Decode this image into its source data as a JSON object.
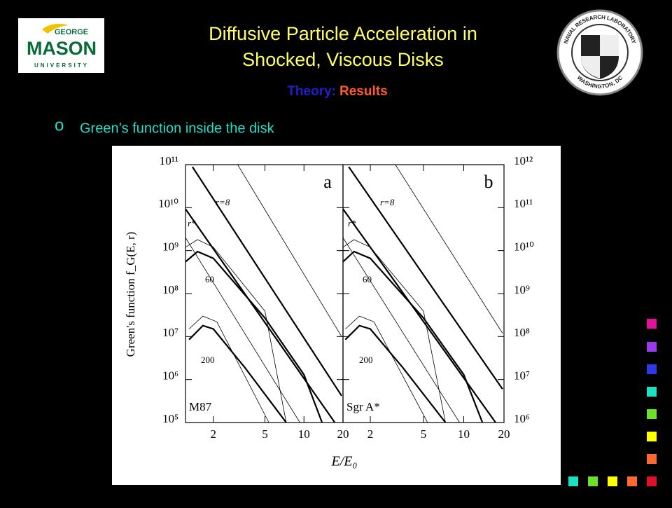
{
  "header": {
    "title_lines": [
      "Diffusive Particle Acceleration in",
      "Shocked, Viscous Disks"
    ],
    "subtitle": {
      "prefix": "Theory:",
      "emphasis": "Results"
    }
  },
  "logos": {
    "left": [
      "GEORGE",
      "MASON",
      "UNIVERSITY"
    ],
    "right": [
      "NAVAL RESEARCH LABORATORY",
      "WASHINGTON, DC"
    ]
  },
  "bullet": {
    "marker": "o",
    "text": "Green’s function inside the disk"
  },
  "chart_data": [
    {
      "type": "line",
      "panel_label": "a",
      "xlabel": "E/E₀",
      "ylabel": "Green's function f_G(E, r)",
      "log_x": true,
      "log_y": true,
      "ytick_side": "left",
      "xlim": [
        1.22,
        20
      ],
      "xticks": [
        2,
        5,
        10,
        20
      ],
      "ylim": [
        100000,
        100000000000
      ],
      "yticks": [
        {
          "value": 100000,
          "label": "10⁵"
        },
        {
          "value": 1000000,
          "label": "10⁶"
        },
        {
          "value": 10000000,
          "label": "10⁷"
        },
        {
          "value": 100000000,
          "label": "10⁸"
        },
        {
          "value": 1000000000,
          "label": "10⁹"
        },
        {
          "value": 10000000000,
          "label": "10¹⁰"
        },
        {
          "value": 100000000000,
          "label": "10¹¹"
        }
      ],
      "annotations": [
        "r=8",
        "r*",
        "60",
        "200",
        "M87"
      ],
      "series": [
        {
          "color": "#000",
          "line_width": 2.2,
          "x": [
            1.38,
            19.5
          ],
          "values": [
            89000000000,
            420000
          ]
        },
        {
          "color": "#000",
          "line_width": 0.8,
          "x": [
            3.08,
            19.5
          ],
          "values": [
            100000000000,
            10000000
          ]
        },
        {
          "color": "#000",
          "line_width": 2.2,
          "x": [
            1.22,
            17.3
          ],
          "values": [
            9300000000,
            100000
          ]
        },
        {
          "color": "#000",
          "line_width": 0.8,
          "x": [
            1.22,
            9.3
          ],
          "values": [
            2000000000,
            100000
          ]
        },
        {
          "color": "#000",
          "line_width": 2.2,
          "x": [
            1.22,
            1.51,
            2,
            5,
            10,
            13.8
          ],
          "values": [
            550000000,
            950000000,
            660000000,
            27000000,
            1300000,
            100000
          ]
        },
        {
          "color": "#000",
          "line_width": 0.8,
          "x": [
            1.22,
            1.51,
            2,
            5,
            7.3
          ],
          "values": [
            1200000000,
            1800000000,
            1200000000,
            39000000,
            100000
          ]
        },
        {
          "color": "#000",
          "line_width": 2.2,
          "x": [
            1.3,
            1.66,
            2,
            3.5,
            7.3
          ],
          "values": [
            8500000,
            18000000,
            15000000,
            1900000,
            100000
          ]
        },
        {
          "color": "#000",
          "line_width": 0.8,
          "x": [
            1.3,
            1.66,
            2.13,
            5.36
          ],
          "values": [
            15000000,
            30000000,
            22000000,
            100000
          ]
        }
      ]
    },
    {
      "type": "line",
      "panel_label": "b",
      "log_x": true,
      "log_y": true,
      "ytick_side": "right",
      "xlim": [
        1.25,
        20
      ],
      "xticks": [
        2,
        5,
        10,
        20
      ],
      "ylim": [
        1000000,
        1000000000000
      ],
      "yticks": [
        {
          "value": 1000000,
          "label": "10⁶"
        },
        {
          "value": 10000000,
          "label": "10⁷"
        },
        {
          "value": 100000000,
          "label": "10⁸"
        },
        {
          "value": 1000000000,
          "label": "10⁹"
        },
        {
          "value": 10000000000,
          "label": "10¹⁰"
        },
        {
          "value": 100000000000,
          "label": "10¹¹"
        },
        {
          "value": 1000000000000,
          "label": "10¹²"
        }
      ],
      "annotations": [
        "r=8",
        "r*",
        "60",
        "200",
        "Sgr A*"
      ],
      "series": [
        {
          "color": "#000",
          "line_width": 2.2,
          "x": [
            1.38,
            19.5
          ],
          "values": [
            890000000000,
            6000000
          ]
        },
        {
          "color": "#000",
          "line_width": 0.8,
          "x": [
            3.08,
            19.5
          ],
          "values": [
            1000000000000,
            120000000
          ]
        },
        {
          "color": "#000",
          "line_width": 2.2,
          "x": [
            1.25,
            17.3
          ],
          "values": [
            93000000000,
            1000000
          ]
        },
        {
          "color": "#000",
          "line_width": 0.8,
          "x": [
            1.25,
            9.3
          ],
          "values": [
            20000000000,
            1000000
          ]
        },
        {
          "color": "#000",
          "line_width": 2.2,
          "x": [
            1.25,
            1.51,
            2,
            5,
            10,
            13.8
          ],
          "values": [
            5500000000,
            9500000000,
            6600000000,
            270000000,
            13000000,
            1000000
          ]
        },
        {
          "color": "#000",
          "line_width": 0.8,
          "x": [
            1.25,
            1.51,
            2,
            5,
            7.3
          ],
          "values": [
            12000000000,
            18000000000,
            12000000000,
            390000000,
            1000000
          ]
        },
        {
          "color": "#000",
          "line_width": 2.2,
          "x": [
            1.3,
            1.66,
            2,
            3.5,
            7.3
          ],
          "values": [
            85000000,
            180000000,
            150000000,
            19000000,
            1000000
          ]
        },
        {
          "color": "#000",
          "line_width": 0.8,
          "x": [
            1.3,
            1.66,
            2.13,
            5.36
          ],
          "values": [
            150000000,
            300000000,
            220000000,
            1000000
          ]
        }
      ]
    }
  ]
}
